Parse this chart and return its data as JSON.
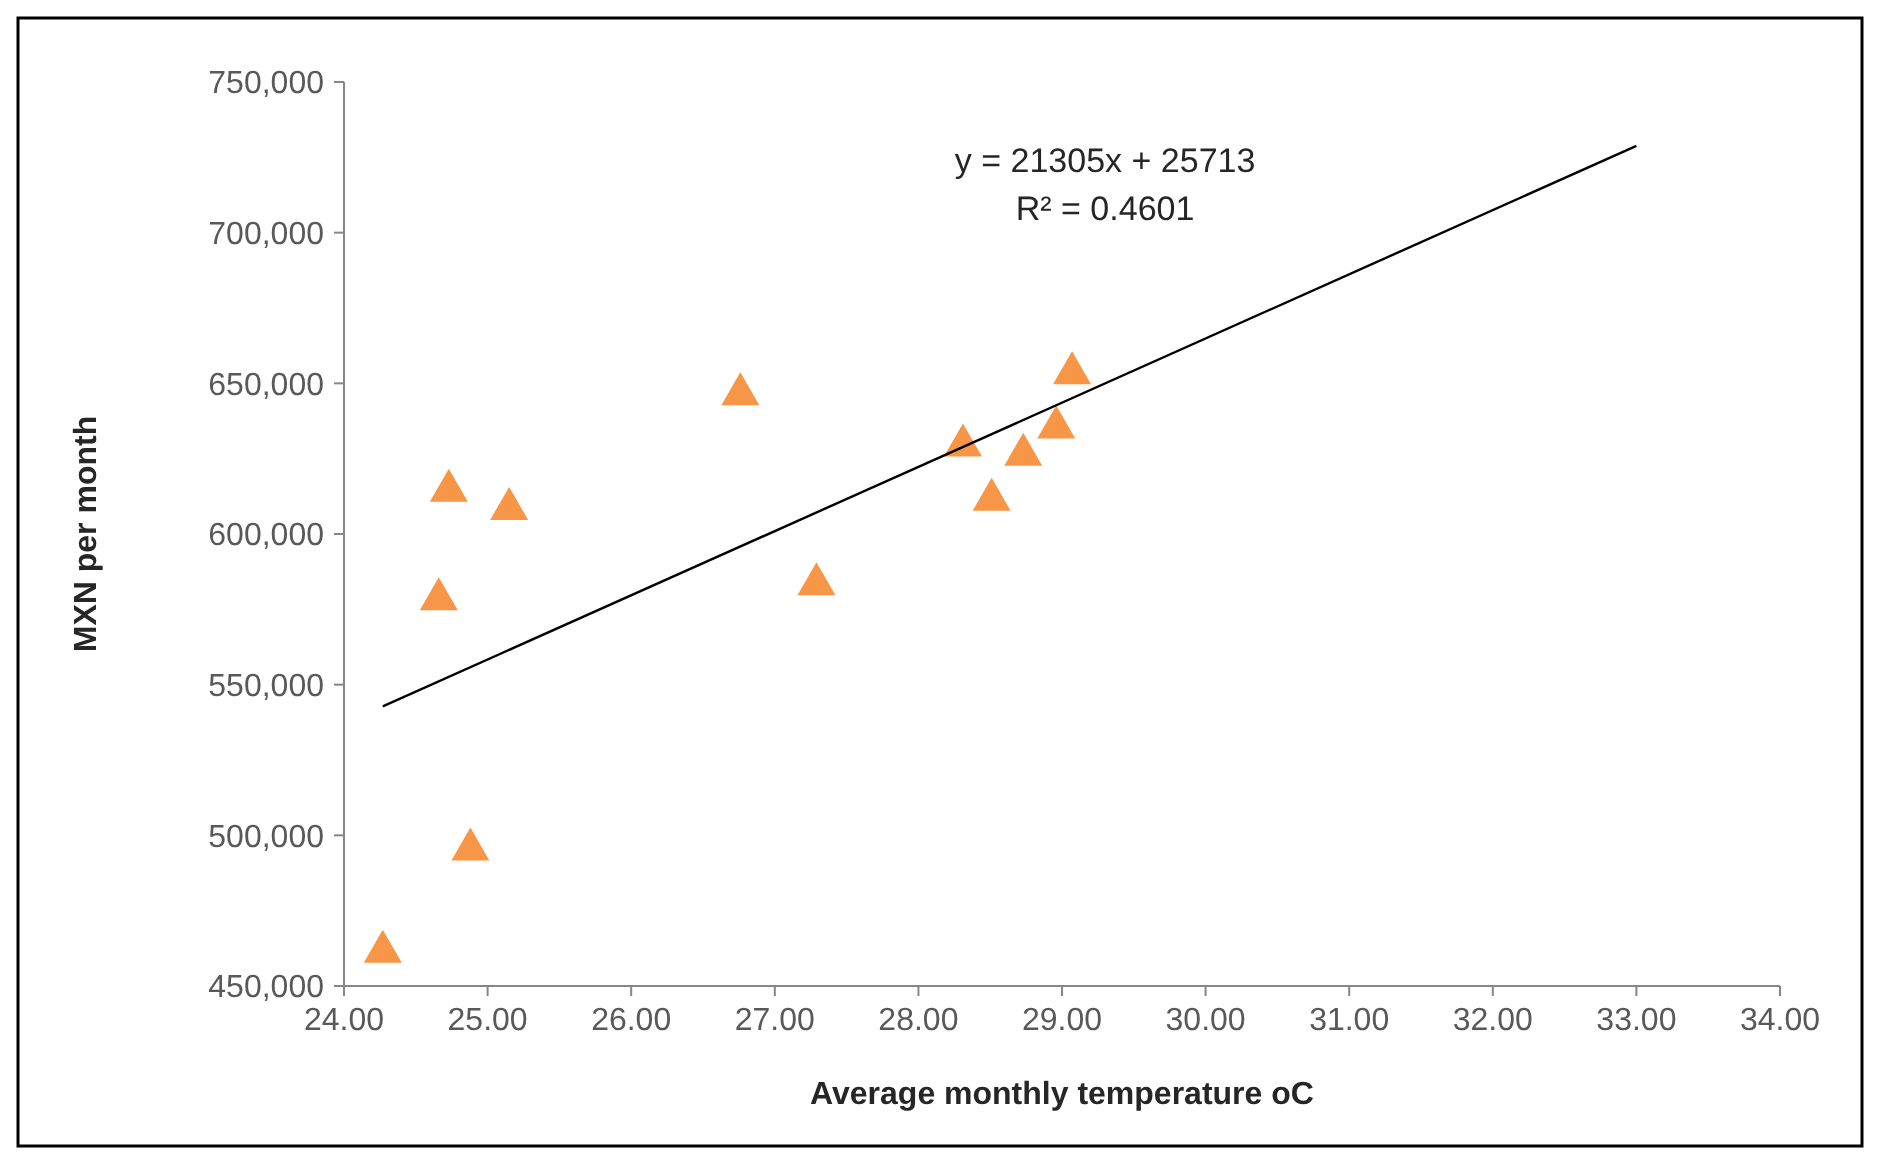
{
  "chart_data": {
    "type": "scatter",
    "xlabel": "Average monthly temperature oC",
    "ylabel": "MXN per month",
    "xlim": [
      24,
      34
    ],
    "xticks": [
      {
        "value": 24,
        "label": "24.00"
      },
      {
        "value": 25,
        "label": "25.00"
      },
      {
        "value": 26,
        "label": "26.00"
      },
      {
        "value": 27,
        "label": "27.00"
      },
      {
        "value": 28,
        "label": "28.00"
      },
      {
        "value": 29,
        "label": "29.00"
      },
      {
        "value": 30,
        "label": "30.00"
      },
      {
        "value": 31,
        "label": "31.00"
      },
      {
        "value": 32,
        "label": "32.00"
      },
      {
        "value": 33,
        "label": "33.00"
      },
      {
        "value": 34,
        "label": "34.00"
      }
    ],
    "ylim": [
      450000,
      750000
    ],
    "yticks": [
      {
        "value": 450000,
        "label": "450,000"
      },
      {
        "value": 500000,
        "label": "500,000"
      },
      {
        "value": 550000,
        "label": "550,000"
      },
      {
        "value": 600000,
        "label": "600,000"
      },
      {
        "value": 650000,
        "label": "650,000"
      },
      {
        "value": 700000,
        "label": "700,000"
      },
      {
        "value": 750000,
        "label": "750,000"
      }
    ],
    "grid": false,
    "series": [
      {
        "color": "#f79646",
        "marker": "triangle",
        "x": [
          24.27,
          24.88,
          24.66,
          24.73,
          25.15,
          26.76,
          27.29,
          28.31,
          28.51,
          28.73,
          28.96,
          29.07
        ],
        "values": [
          462000,
          496000,
          579000,
          615000,
          609000,
          647000,
          584000,
          630000,
          612000,
          627000,
          636000,
          654000
        ]
      },
      {
        "type": "line",
        "color": "#000000",
        "marker": "none",
        "line_style": "solid",
        "x": [
          24.27,
          33.0
        ],
        "values": [
          542800,
          728800
        ]
      }
    ],
    "annotations": [
      "y = 21305x + 25713",
      "R² = 0.4601"
    ]
  }
}
